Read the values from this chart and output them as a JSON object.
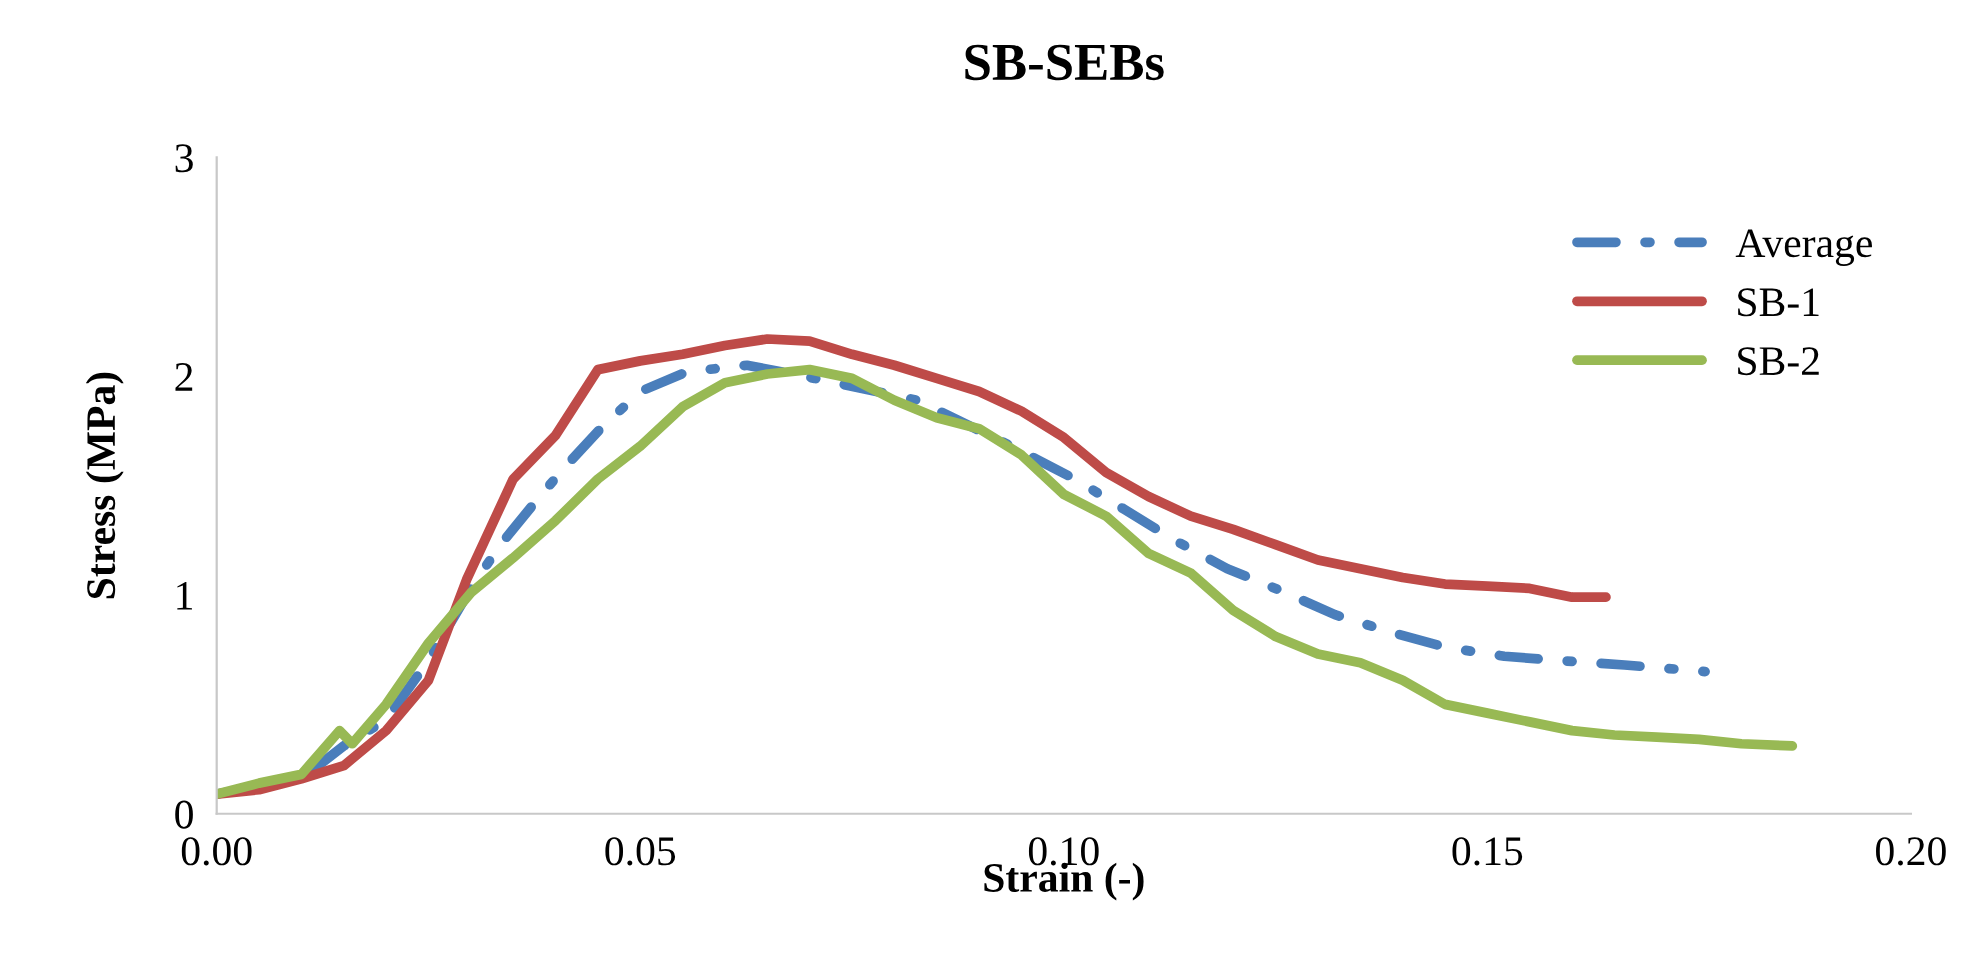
{
  "chart_data": {
    "type": "line",
    "title": "SB-SEBs",
    "xlabel": "Strain (-)",
    "ylabel": "Stress (MPa)",
    "xlim": [
      0,
      0.2
    ],
    "xticks": [
      {
        "value": 0,
        "label": "0.00"
      },
      {
        "value": 0.05,
        "label": "0.05"
      },
      {
        "value": 0.1,
        "label": "0.10"
      },
      {
        "value": 0.15,
        "label": "0.15"
      },
      {
        "value": 0.2,
        "label": "0.20"
      }
    ],
    "ylim": [
      0,
      3
    ],
    "yticks": [
      0,
      1,
      2,
      3
    ],
    "grid": false,
    "legend": "top right",
    "series": [
      {
        "name": "Average",
        "color": "#4a7ebb",
        "line_style": "dashdot",
        "x": [
          0,
          0.01,
          0.015,
          0.02,
          0.025,
          0.03,
          0.0335,
          0.0375,
          0.041,
          0.0453,
          0.05,
          0.0555,
          0.0626,
          0.0706,
          0.0827,
          0.0933,
          0.1013,
          0.1072,
          0.1131,
          0.1193,
          0.1256,
          0.132,
          0.1386,
          0.1452,
          0.152,
          0.1587,
          0.1662,
          0.1757
        ],
        "values": [
          0.09,
          0.16,
          0.31,
          0.43,
          0.7,
          1.03,
          1.23,
          1.42,
          1.58,
          1.76,
          1.93,
          2.02,
          2.05,
          1.99,
          1.89,
          1.69,
          1.53,
          1.39,
          1.25,
          1.12,
          1.02,
          0.91,
          0.83,
          0.76,
          0.72,
          0.7,
          0.68,
          0.65
        ]
      },
      {
        "name": "SB-1",
        "color": "#be4b48",
        "line_style": "solid",
        "x": [
          0,
          0.005,
          0.01,
          0.015,
          0.02,
          0.025,
          0.0295,
          0.035,
          0.04,
          0.045,
          0.05,
          0.055,
          0.06,
          0.065,
          0.07,
          0.075,
          0.08,
          0.085,
          0.09,
          0.095,
          0.1,
          0.105,
          0.11,
          0.115,
          0.12,
          0.125,
          0.13,
          0.135,
          0.14,
          0.145,
          0.15,
          0.155,
          0.16,
          0.164
        ],
        "values": [
          0.09,
          0.11,
          0.16,
          0.22,
          0.38,
          0.61,
          1.07,
          1.53,
          1.73,
          2.03,
          2.07,
          2.1,
          2.14,
          2.17,
          2.16,
          2.1,
          2.05,
          1.99,
          1.93,
          1.84,
          1.72,
          1.56,
          1.45,
          1.36,
          1.3,
          1.23,
          1.16,
          1.12,
          1.08,
          1.05,
          1.04,
          1.03,
          0.99,
          0.99
        ]
      },
      {
        "name": "SB-2",
        "color": "#98b954",
        "line_style": "solid",
        "x": [
          0,
          0.005,
          0.01,
          0.0145,
          0.016,
          0.02,
          0.025,
          0.03,
          0.035,
          0.04,
          0.045,
          0.05,
          0.055,
          0.06,
          0.065,
          0.07,
          0.075,
          0.08,
          0.085,
          0.09,
          0.095,
          0.1,
          0.105,
          0.11,
          0.115,
          0.12,
          0.125,
          0.13,
          0.135,
          0.14,
          0.145,
          0.15,
          0.155,
          0.16,
          0.165,
          0.17,
          0.175,
          0.18,
          0.186
        ],
        "values": [
          0.09,
          0.14,
          0.18,
          0.38,
          0.32,
          0.5,
          0.78,
          1.01,
          1.17,
          1.34,
          1.53,
          1.68,
          1.86,
          1.97,
          2.01,
          2.03,
          1.99,
          1.89,
          1.81,
          1.76,
          1.64,
          1.46,
          1.36,
          1.19,
          1.1,
          0.93,
          0.81,
          0.73,
          0.69,
          0.61,
          0.5,
          0.46,
          0.42,
          0.38,
          0.36,
          0.35,
          0.34,
          0.32,
          0.31
        ]
      }
    ]
  }
}
